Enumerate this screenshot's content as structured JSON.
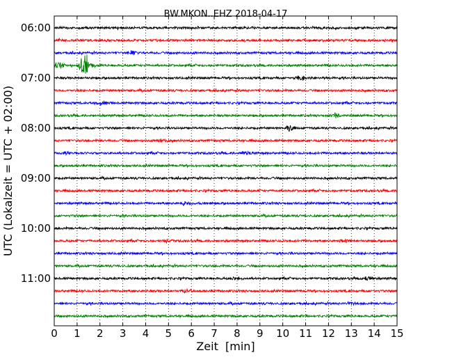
{
  "chart_data": {
    "type": "line",
    "title": "BW.MKON..EHZ 2018-04-17",
    "xlabel": "Zeit  [min]",
    "ylabel": "UTC (Lokalzeit = UTC + 02:00)",
    "xlim": [
      0,
      15
    ],
    "x_ticks": [
      "0",
      "1",
      "2",
      "3",
      "4",
      "5",
      "6",
      "7",
      "8",
      "9",
      "10",
      "11",
      "12",
      "13",
      "14",
      "15"
    ],
    "y_tick_labels": [
      "06:00",
      "07:00",
      "08:00",
      "09:00",
      "10:00",
      "11:00"
    ],
    "grid": "vertical dotted",
    "trace_interval_min": 15,
    "series": [
      {
        "start": "06:00",
        "color": "#000000"
      },
      {
        "start": "06:15",
        "color": "#ff0000"
      },
      {
        "start": "06:30",
        "color": "#0000ff",
        "events": [
          {
            "t": 3.4,
            "amp": 0.35
          }
        ]
      },
      {
        "start": "06:45",
        "color": "#008000",
        "events": [
          {
            "t": 0.2,
            "amp": 0.6
          },
          {
            "t": 1.3,
            "amp": 2.5
          },
          {
            "t": 1.6,
            "amp": 0.5
          }
        ]
      },
      {
        "start": "07:00",
        "color": "#000000",
        "events": [
          {
            "t": 10.8,
            "amp": 0.4
          }
        ]
      },
      {
        "start": "07:15",
        "color": "#ff0000"
      },
      {
        "start": "07:30",
        "color": "#0000ff",
        "events": [
          {
            "t": 2.1,
            "amp": 0.3
          }
        ]
      },
      {
        "start": "07:45",
        "color": "#008000",
        "events": [
          {
            "t": 12.3,
            "amp": 0.35
          }
        ]
      },
      {
        "start": "08:00",
        "color": "#000000",
        "events": [
          {
            "t": 10.3,
            "amp": 0.6
          }
        ]
      },
      {
        "start": "08:15",
        "color": "#ff0000",
        "events": [
          {
            "t": 4.7,
            "amp": 0.25
          }
        ]
      },
      {
        "start": "08:30",
        "color": "#0000ff",
        "events": [
          {
            "t": 8.4,
            "amp": 0.25
          },
          {
            "t": 0.5,
            "amp": 0.2
          }
        ]
      },
      {
        "start": "08:45",
        "color": "#008000"
      },
      {
        "start": "09:00",
        "color": "#000000"
      },
      {
        "start": "09:15",
        "color": "#ff0000"
      },
      {
        "start": "09:30",
        "color": "#0000ff",
        "events": [
          {
            "t": 5.8,
            "amp": 0.25
          }
        ]
      },
      {
        "start": "09:45",
        "color": "#008000"
      },
      {
        "start": "10:00",
        "color": "#000000"
      },
      {
        "start": "10:15",
        "color": "#ff0000",
        "events": [
          {
            "t": 12.7,
            "amp": 0.3
          },
          {
            "t": 4.9,
            "amp": 0.25
          }
        ]
      },
      {
        "start": "10:30",
        "color": "#0000ff"
      },
      {
        "start": "10:45",
        "color": "#008000"
      },
      {
        "start": "11:00",
        "color": "#000000",
        "events": [
          {
            "t": 13.7,
            "amp": 0.3
          },
          {
            "t": 8.0,
            "amp": 0.25
          }
        ]
      },
      {
        "start": "11:15",
        "color": "#ff0000",
        "events": [
          {
            "t": 5.8,
            "amp": 0.25
          }
        ]
      },
      {
        "start": "11:30",
        "color": "#0000ff",
        "events": [
          {
            "t": 13.0,
            "amp": 0.25
          }
        ]
      },
      {
        "start": "11:45",
        "color": "#008000"
      }
    ]
  }
}
